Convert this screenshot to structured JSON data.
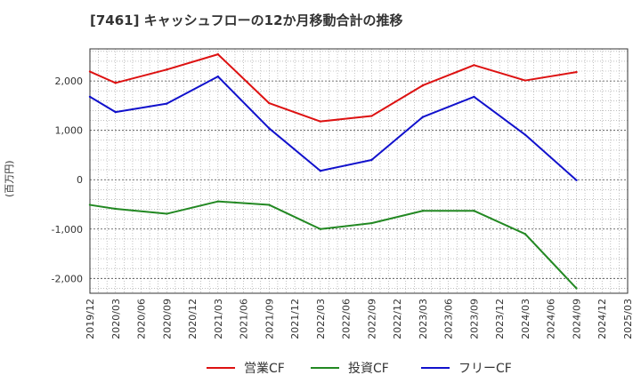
{
  "chart_data": {
    "type": "line",
    "title": "[7461]  キャッシュフローの12か月移動合計の推移",
    "ylabel": "(百万円)",
    "xlabel": "",
    "ylim": [
      -2300,
      2650
    ],
    "yticks": [
      -2000,
      -1000,
      0,
      1000,
      2000
    ],
    "ytick_labels": [
      "-2,000",
      "-1,000",
      "0",
      "1,000",
      "2,000"
    ],
    "x_tick_labels": [
      "2019/12",
      "2020/03",
      "2020/06",
      "2020/09",
      "2020/12",
      "2021/03",
      "2021/06",
      "2021/09",
      "2021/12",
      "2022/03",
      "2022/06",
      "2022/09",
      "2022/12",
      "2023/03",
      "2023/06",
      "2023/09",
      "2023/12",
      "2024/03",
      "2024/06",
      "2024/09",
      "2024/12",
      "2025/03"
    ],
    "grid": true,
    "legend_position": "bottom",
    "series": [
      {
        "name": "営業CF",
        "color": "#dd1111",
        "x": [
          "2019/12",
          "2020/03",
          "2020/09",
          "2021/03",
          "2021/09",
          "2022/03",
          "2022/09",
          "2023/03",
          "2023/09",
          "2024/03",
          "2024/09"
        ],
        "values": [
          2190,
          1960,
          2230,
          2540,
          1550,
          1180,
          1290,
          1910,
          2320,
          2010,
          2180
        ]
      },
      {
        "name": "投資CF",
        "color": "#228822",
        "x": [
          "2019/12",
          "2020/03",
          "2020/09",
          "2021/03",
          "2021/09",
          "2022/03",
          "2022/09",
          "2023/03",
          "2023/09",
          "2024/03",
          "2024/09"
        ],
        "values": [
          -510,
          -590,
          -690,
          -440,
          -510,
          -1000,
          -880,
          -630,
          -630,
          -1100,
          -2200
        ]
      },
      {
        "name": "フリーCF",
        "color": "#1111cc",
        "x": [
          "2019/12",
          "2020/03",
          "2020/09",
          "2021/03",
          "2021/09",
          "2022/03",
          "2022/09",
          "2023/03",
          "2023/09",
          "2024/03",
          "2024/09"
        ],
        "values": [
          1680,
          1370,
          1540,
          2090,
          1040,
          180,
          400,
          1270,
          1680,
          910,
          -10
        ]
      }
    ]
  }
}
